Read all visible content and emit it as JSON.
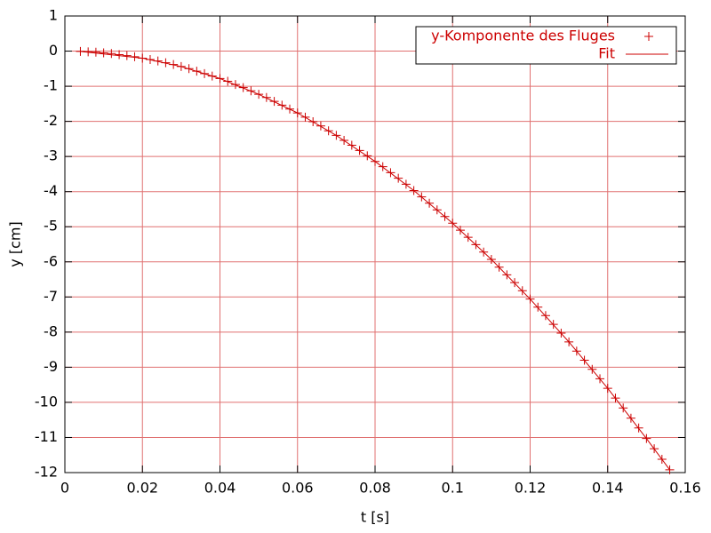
{
  "chart_data": {
    "type": "scatter",
    "xlabel": "t [s]",
    "ylabel": "y [cm]",
    "xlim": [
      0,
      0.16
    ],
    "ylim": [
      -12,
      1
    ],
    "xticks": [
      0,
      0.02,
      0.04,
      0.06,
      0.08,
      0.1,
      0.12,
      0.14,
      0.16
    ],
    "yticks": [
      -12,
      -11,
      -10,
      -9,
      -8,
      -7,
      -6,
      -5,
      -4,
      -3,
      -2,
      -1,
      0,
      1
    ],
    "grid": true,
    "legend": "top right",
    "series": [
      {
        "name": "y-Komponente des Fluges",
        "type": "scatter",
        "color": "#cc0000",
        "x": [
          0.004,
          0.006,
          0.008,
          0.01,
          0.012,
          0.014,
          0.016,
          0.018,
          0.02,
          0.022,
          0.024,
          0.026,
          0.028,
          0.03,
          0.032,
          0.034,
          0.036,
          0.038,
          0.04,
          0.042,
          0.044,
          0.046,
          0.048,
          0.05,
          0.052,
          0.054,
          0.056,
          0.058,
          0.06,
          0.062,
          0.064,
          0.066,
          0.068,
          0.07,
          0.072,
          0.074,
          0.076,
          0.078,
          0.08,
          0.082,
          0.084,
          0.086,
          0.088,
          0.09,
          0.092,
          0.094,
          0.096,
          0.098,
          0.1,
          0.102,
          0.104,
          0.106,
          0.108,
          0.11,
          0.112,
          0.114,
          0.116,
          0.118,
          0.12,
          0.122,
          0.124,
          0.126,
          0.128,
          0.13,
          0.132,
          0.134,
          0.136,
          0.138,
          0.14,
          0.142,
          0.144,
          0.146,
          0.148,
          0.15,
          0.152,
          0.154,
          0.156
        ],
        "values": [
          -0.01,
          -0.02,
          -0.03,
          -0.05,
          -0.07,
          -0.1,
          -0.13,
          -0.16,
          -0.2,
          -0.24,
          -0.28,
          -0.33,
          -0.38,
          -0.44,
          -0.5,
          -0.57,
          -0.64,
          -0.71,
          -0.78,
          -0.86,
          -0.95,
          -1.04,
          -1.13,
          -1.23,
          -1.32,
          -1.43,
          -1.54,
          -1.65,
          -1.76,
          -1.88,
          -2.01,
          -2.13,
          -2.27,
          -2.4,
          -2.54,
          -2.68,
          -2.83,
          -2.98,
          -3.14,
          -3.29,
          -3.46,
          -3.62,
          -3.79,
          -3.97,
          -4.15,
          -4.33,
          -4.52,
          -4.71,
          -4.9,
          -5.1,
          -5.3,
          -5.51,
          -5.72,
          -5.93,
          -6.15,
          -6.37,
          -6.59,
          -6.82,
          -7.06,
          -7.29,
          -7.53,
          -7.78,
          -8.03,
          -8.28,
          -8.54,
          -8.8,
          -9.06,
          -9.33,
          -9.6,
          -9.88,
          -10.16,
          -10.45,
          -10.73,
          -11.03,
          -11.32,
          -11.62,
          -11.92
        ]
      },
      {
        "name": "Fit",
        "type": "line",
        "color": "#cc0000",
        "x": [
          0.004,
          0.02,
          0.03,
          0.04,
          0.05,
          0.06,
          0.07,
          0.08,
          0.09,
          0.1,
          0.11,
          0.12,
          0.13,
          0.14,
          0.15,
          0.156
        ],
        "values": [
          -0.01,
          -0.2,
          -0.44,
          -0.78,
          -1.23,
          -1.76,
          -2.4,
          -3.14,
          -3.97,
          -4.9,
          -5.93,
          -7.06,
          -8.28,
          -9.6,
          -11.03,
          -11.92
        ]
      }
    ]
  }
}
